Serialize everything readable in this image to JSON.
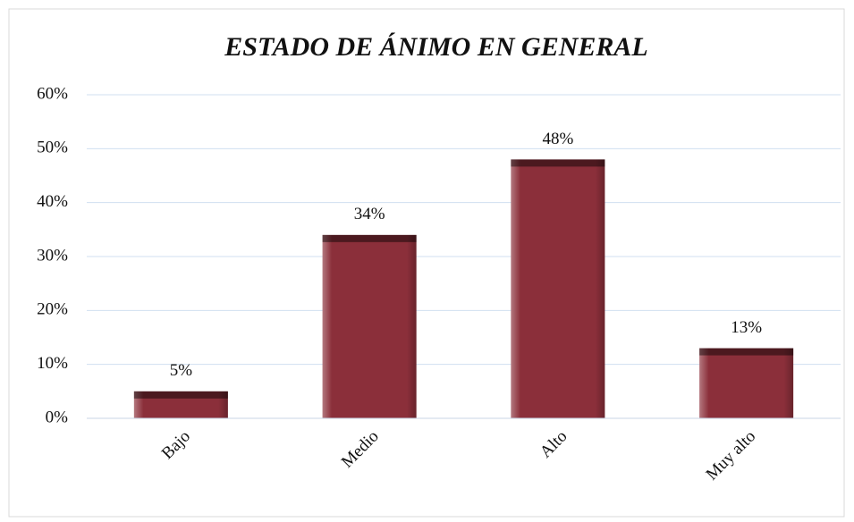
{
  "chart_data": {
    "type": "bar",
    "title": "ESTADO DE ÁNIMO EN GENERAL",
    "categories": [
      "Bajo",
      "Medio",
      "Alto",
      "Muy alto"
    ],
    "values": [
      5,
      34,
      48,
      13
    ],
    "value_labels": [
      "5%",
      "34%",
      "48%",
      "13%"
    ],
    "color": "#8b2f3a",
    "ylim": [
      0,
      60
    ],
    "yticks": [
      {
        "value": 0,
        "label": "0%"
      },
      {
        "value": 10,
        "label": "10%"
      },
      {
        "value": 20,
        "label": "20%"
      },
      {
        "value": 30,
        "label": "30%"
      },
      {
        "value": 40,
        "label": "40%"
      },
      {
        "value": 50,
        "label": "50%"
      },
      {
        "value": 60,
        "label": "60%"
      }
    ],
    "grid": true
  }
}
